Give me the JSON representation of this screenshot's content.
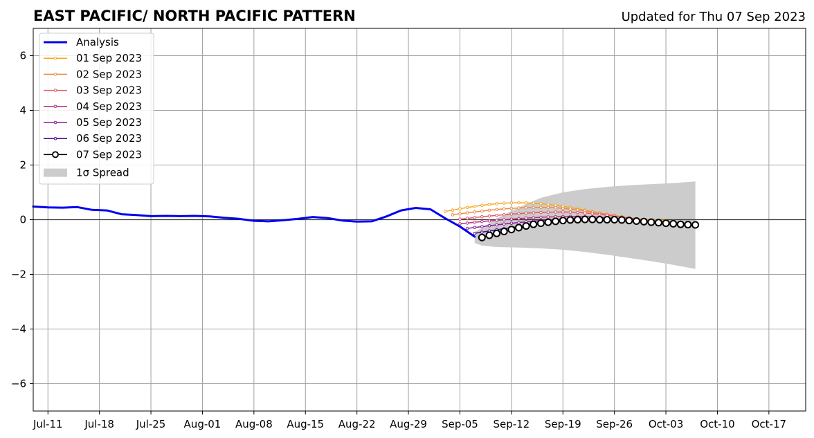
{
  "title": "EAST PACIFIC/ NORTH PACIFIC PATTERN",
  "subtitle": "Updated for Thu 07 Sep 2023",
  "chart_data": {
    "type": "line",
    "title": "EAST PACIFIC/ NORTH PACIFIC PATTERN",
    "subtitle": "Updated for Thu 07 Sep 2023",
    "xlabel": "",
    "ylabel": "",
    "xlim": [
      "2023-07-09",
      "2023-10-22"
    ],
    "ylim": [
      -7,
      7
    ],
    "yticks": [
      -6,
      -4,
      -2,
      0,
      2,
      4,
      6
    ],
    "ytick_labels": [
      "−6",
      "−4",
      "−2",
      "0",
      "2",
      "4",
      "6"
    ],
    "xticks": [
      "2023-07-11",
      "2023-07-18",
      "2023-07-25",
      "2023-08-01",
      "2023-08-08",
      "2023-08-15",
      "2023-08-22",
      "2023-08-29",
      "2023-09-05",
      "2023-09-12",
      "2023-09-19",
      "2023-09-26",
      "2023-10-03",
      "2023-10-10",
      "2023-10-17"
    ],
    "xtick_labels": [
      "Jul-11",
      "Jul-18",
      "Jul-25",
      "Aug-01",
      "Aug-08",
      "Aug-15",
      "Aug-22",
      "Aug-29",
      "Sep-05",
      "Sep-12",
      "Sep-19",
      "Sep-26",
      "Oct-03",
      "Oct-10",
      "Oct-17"
    ],
    "grid": true,
    "legend_position": "top-left",
    "zero_line": true,
    "analysis": {
      "name": "Analysis",
      "color": "#0000ee",
      "x": [
        "2023-07-09",
        "2023-07-11",
        "2023-07-13",
        "2023-07-15",
        "2023-07-17",
        "2023-07-19",
        "2023-07-21",
        "2023-07-23",
        "2023-07-25",
        "2023-07-27",
        "2023-07-29",
        "2023-07-31",
        "2023-08-02",
        "2023-08-04",
        "2023-08-06",
        "2023-08-08",
        "2023-08-10",
        "2023-08-12",
        "2023-08-14",
        "2023-08-16",
        "2023-08-18",
        "2023-08-20",
        "2023-08-22",
        "2023-08-24",
        "2023-08-26",
        "2023-08-28",
        "2023-08-30",
        "2023-09-01",
        "2023-09-03",
        "2023-09-05",
        "2023-09-07"
      ],
      "y": [
        0.48,
        0.45,
        0.44,
        0.46,
        0.36,
        0.34,
        0.2,
        0.17,
        0.13,
        0.14,
        0.13,
        0.14,
        0.12,
        0.07,
        0.03,
        -0.04,
        -0.06,
        -0.02,
        0.03,
        0.1,
        0.06,
        -0.03,
        -0.07,
        -0.06,
        0.12,
        0.34,
        0.43,
        0.38,
        0.05,
        -0.25,
        -0.62
      ]
    },
    "forecasts": [
      {
        "name": "01 Sep 2023",
        "color": "#f5a623",
        "start": "2023-09-03",
        "end": "2023-10-03",
        "y_start": 0.3,
        "y_peak": 0.62,
        "peak_day": 10,
        "y_end": -0.02
      },
      {
        "name": "02 Sep 2023",
        "color": "#ec8a4a",
        "start": "2023-09-04",
        "end": "2023-10-04",
        "y_start": 0.18,
        "y_peak": 0.45,
        "peak_day": 12,
        "y_end": -0.06
      },
      {
        "name": "03 Sep 2023",
        "color": "#dd5b68",
        "start": "2023-09-05",
        "end": "2023-10-05",
        "y_start": 0.02,
        "y_peak": 0.28,
        "peak_day": 14,
        "y_end": -0.1
      },
      {
        "name": "04 Sep 2023",
        "color": "#b8307d",
        "start": "2023-09-05",
        "end": "2023-10-05",
        "y_start": -0.15,
        "y_peak": 0.12,
        "peak_day": 16,
        "y_end": -0.14
      },
      {
        "name": "05 Sep 2023",
        "color": "#8b1a9a",
        "start": "2023-09-06",
        "end": "2023-10-06",
        "y_start": -0.32,
        "y_peak": 0.04,
        "peak_day": 17,
        "y_end": -0.16
      },
      {
        "name": "06 Sep 2023",
        "color": "#4a0a86",
        "start": "2023-09-07",
        "end": "2023-10-07",
        "y_start": -0.5,
        "y_peak": 0.0,
        "peak_day": 18,
        "y_end": -0.18
      }
    ],
    "latest": {
      "name": "07 Sep 2023",
      "color": "#000000",
      "x": [
        "2023-09-08",
        "2023-09-09",
        "2023-09-10",
        "2023-09-11",
        "2023-09-12",
        "2023-09-13",
        "2023-09-14",
        "2023-09-15",
        "2023-09-16",
        "2023-09-17",
        "2023-09-18",
        "2023-09-19",
        "2023-09-20",
        "2023-09-21",
        "2023-09-22",
        "2023-09-23",
        "2023-09-24",
        "2023-09-25",
        "2023-09-26",
        "2023-09-27",
        "2023-09-28",
        "2023-09-29",
        "2023-09-30",
        "2023-10-01",
        "2023-10-02",
        "2023-10-03",
        "2023-10-04",
        "2023-10-05",
        "2023-10-06",
        "2023-10-07"
      ],
      "y": [
        -0.65,
        -0.57,
        -0.5,
        -0.43,
        -0.36,
        -0.29,
        -0.23,
        -0.17,
        -0.13,
        -0.09,
        -0.06,
        -0.03,
        -0.01,
        0.0,
        0.01,
        0.01,
        0.0,
        0.0,
        0.0,
        -0.01,
        -0.03,
        -0.05,
        -0.07,
        -0.09,
        -0.11,
        -0.13,
        -0.15,
        -0.17,
        -0.18,
        -0.19
      ]
    },
    "spread": {
      "name": "1σ Spread",
      "color": "#cccccc",
      "x": [
        "2023-09-07",
        "2023-09-08",
        "2023-09-10",
        "2023-09-13",
        "2023-09-16",
        "2023-09-19",
        "2023-09-22",
        "2023-09-25",
        "2023-09-28",
        "2023-10-01",
        "2023-10-04",
        "2023-10-07"
      ],
      "upper": [
        -0.45,
        -0.3,
        0.05,
        0.45,
        0.8,
        1.0,
        1.12,
        1.2,
        1.26,
        1.3,
        1.34,
        1.4
      ],
      "lower": [
        -0.85,
        -0.95,
        -1.0,
        -1.02,
        -1.05,
        -1.1,
        -1.18,
        -1.28,
        -1.4,
        -1.52,
        -1.65,
        -1.8
      ]
    }
  }
}
